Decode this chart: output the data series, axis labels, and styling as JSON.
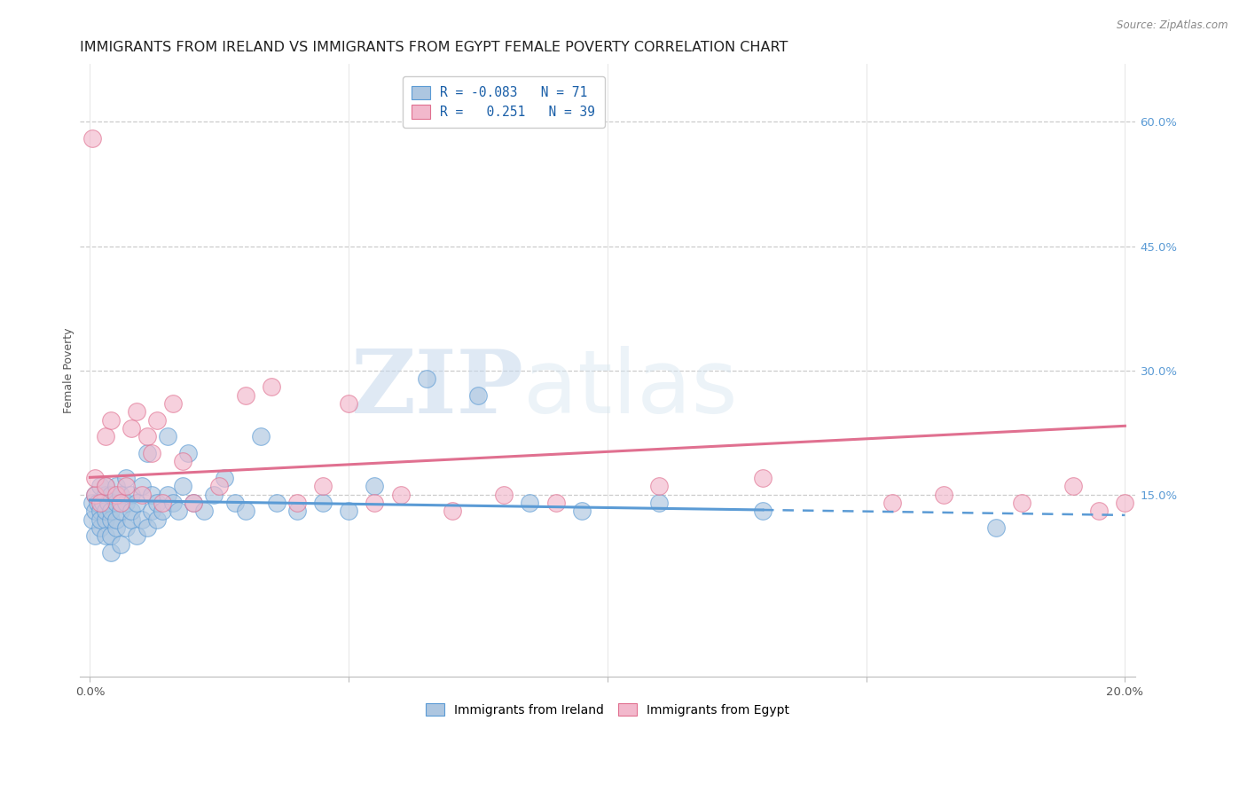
{
  "title": "IMMIGRANTS FROM IRELAND VS IMMIGRANTS FROM EGYPT FEMALE POVERTY CORRELATION CHART",
  "source": "Source: ZipAtlas.com",
  "ylabel": "Female Poverty",
  "ytick_values": [
    0.15,
    0.3,
    0.45,
    0.6
  ],
  "xtick_values": [
    0.0,
    0.05,
    0.1,
    0.15,
    0.2
  ],
  "xlim": [
    -0.002,
    0.202
  ],
  "ylim": [
    -0.07,
    0.67
  ],
  "ireland_color": "#adc6e0",
  "ireland_color_dark": "#5b9bd5",
  "egypt_color": "#f2b8cc",
  "egypt_color_dark": "#e07090",
  "ireland_R": -0.083,
  "ireland_N": 71,
  "egypt_R": 0.251,
  "egypt_N": 39,
  "legend_label_ireland": "R = -0.083   N = 71",
  "legend_label_egypt": "R =   0.251   N = 39",
  "bottom_legend_ireland": "Immigrants from Ireland",
  "bottom_legend_egypt": "Immigrants from Egypt",
  "watermark_zip": "ZIP",
  "watermark_atlas": "atlas",
  "ireland_x": [
    0.0005,
    0.0005,
    0.001,
    0.001,
    0.001,
    0.0015,
    0.002,
    0.002,
    0.002,
    0.002,
    0.0025,
    0.003,
    0.003,
    0.003,
    0.003,
    0.003,
    0.0035,
    0.004,
    0.004,
    0.004,
    0.004,
    0.004,
    0.005,
    0.005,
    0.005,
    0.005,
    0.006,
    0.006,
    0.006,
    0.007,
    0.007,
    0.007,
    0.008,
    0.008,
    0.008,
    0.009,
    0.009,
    0.01,
    0.01,
    0.011,
    0.011,
    0.012,
    0.012,
    0.013,
    0.013,
    0.014,
    0.015,
    0.015,
    0.016,
    0.017,
    0.018,
    0.019,
    0.02,
    0.022,
    0.024,
    0.026,
    0.028,
    0.03,
    0.033,
    0.036,
    0.04,
    0.045,
    0.05,
    0.055,
    0.065,
    0.075,
    0.085,
    0.095,
    0.11,
    0.13,
    0.175
  ],
  "ireland_y": [
    0.14,
    0.12,
    0.13,
    0.15,
    0.1,
    0.14,
    0.16,
    0.13,
    0.11,
    0.12,
    0.14,
    0.15,
    0.12,
    0.1,
    0.13,
    0.16,
    0.14,
    0.12,
    0.08,
    0.1,
    0.13,
    0.15,
    0.11,
    0.14,
    0.16,
    0.12,
    0.09,
    0.13,
    0.15,
    0.11,
    0.14,
    0.17,
    0.12,
    0.15,
    0.13,
    0.1,
    0.14,
    0.12,
    0.16,
    0.11,
    0.2,
    0.13,
    0.15,
    0.12,
    0.14,
    0.13,
    0.15,
    0.22,
    0.14,
    0.13,
    0.16,
    0.2,
    0.14,
    0.13,
    0.15,
    0.17,
    0.14,
    0.13,
    0.22,
    0.14,
    0.13,
    0.14,
    0.13,
    0.16,
    0.29,
    0.27,
    0.14,
    0.13,
    0.14,
    0.13,
    0.11
  ],
  "egypt_x": [
    0.0005,
    0.001,
    0.001,
    0.002,
    0.003,
    0.003,
    0.004,
    0.005,
    0.006,
    0.007,
    0.008,
    0.009,
    0.01,
    0.011,
    0.012,
    0.013,
    0.014,
    0.016,
    0.018,
    0.02,
    0.025,
    0.03,
    0.035,
    0.04,
    0.045,
    0.05,
    0.055,
    0.06,
    0.07,
    0.08,
    0.09,
    0.11,
    0.13,
    0.155,
    0.165,
    0.18,
    0.19,
    0.195,
    0.2
  ],
  "egypt_y": [
    0.58,
    0.15,
    0.17,
    0.14,
    0.16,
    0.22,
    0.24,
    0.15,
    0.14,
    0.16,
    0.23,
    0.25,
    0.15,
    0.22,
    0.2,
    0.24,
    0.14,
    0.26,
    0.19,
    0.14,
    0.16,
    0.27,
    0.28,
    0.14,
    0.16,
    0.26,
    0.14,
    0.15,
    0.13,
    0.15,
    0.14,
    0.16,
    0.17,
    0.14,
    0.15,
    0.14,
    0.16,
    0.13,
    0.14
  ],
  "title_fontsize": 11.5,
  "axis_label_fontsize": 9,
  "tick_fontsize": 9.5,
  "source_fontsize": 8.5
}
